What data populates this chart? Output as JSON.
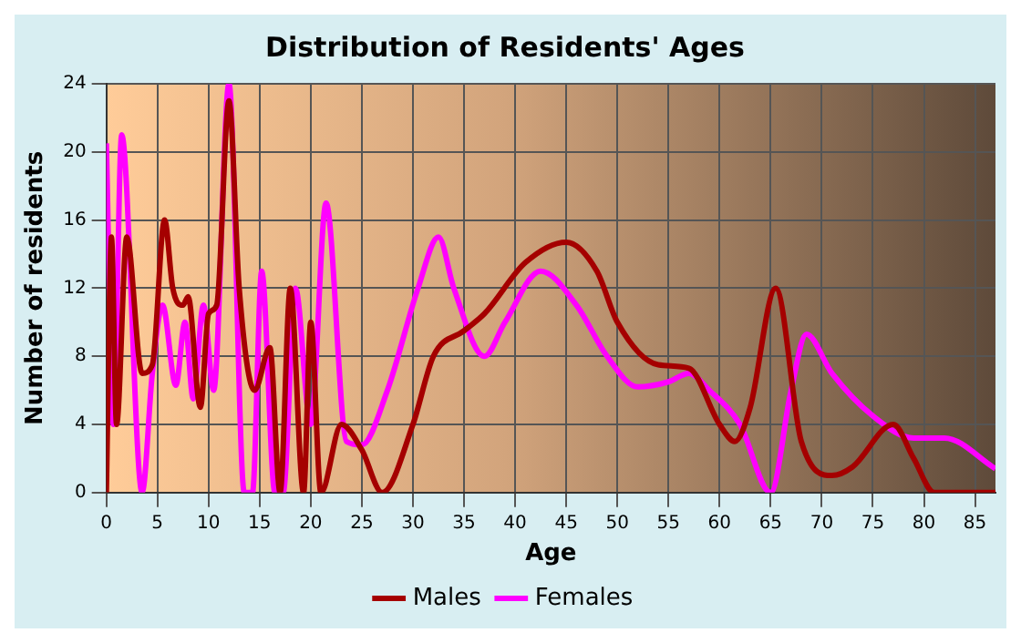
{
  "chart_data": {
    "type": "line",
    "title": "Distribution of Residents' Ages",
    "xlabel": "Age",
    "ylabel": "Number of residents",
    "xlim": [
      0,
      87
    ],
    "xticks": [
      0,
      5,
      10,
      15,
      20,
      25,
      30,
      35,
      40,
      45,
      50,
      55,
      60,
      65,
      70,
      75,
      80,
      85
    ],
    "ylim": [
      0,
      24
    ],
    "yticks": [
      0,
      4,
      8,
      12,
      16,
      20,
      24
    ],
    "grid": true,
    "legend": "bottom",
    "marker": "none",
    "line_style": "solid",
    "series": [
      {
        "name": "Males",
        "color": "#a50000",
        "x": [
          0,
          0.5,
          1,
          2,
          3.5,
          4.5,
          5.7,
          6.5,
          7.5,
          8,
          9.2,
          10,
          10.8,
          12,
          13,
          14.5,
          16,
          17,
          18,
          19.3,
          20,
          21,
          23,
          25,
          27,
          30,
          32,
          35,
          37,
          41,
          45,
          48,
          50,
          54,
          57,
          60,
          61.5,
          63,
          65.5,
          68,
          71,
          73,
          77,
          79,
          81,
          87
        ],
        "values": [
          0,
          15,
          4,
          15,
          7,
          7.5,
          16,
          12,
          11,
          11.5,
          5,
          10.5,
          11,
          23,
          12,
          6,
          8.5,
          0,
          12,
          0,
          10,
          0,
          4,
          2.5,
          0,
          4,
          8,
          9.5,
          10.5,
          13.5,
          14.7,
          13,
          10,
          7.5,
          7.3,
          4,
          3,
          5,
          12,
          3,
          1,
          1.5,
          4,
          2,
          0,
          0
        ]
      },
      {
        "name": "Females",
        "color": "#ff00ff",
        "x": [
          0,
          0.7,
          1.5,
          3.5,
          4.5,
          5.5,
          6.8,
          7.7,
          8.5,
          9.5,
          10.5,
          12,
          13.5,
          14.3,
          15.2,
          16.5,
          17.3,
          18.5,
          20,
          21.5,
          23.5,
          25,
          27.5,
          30.5,
          32.5,
          34,
          37,
          39,
          42.5,
          46,
          49,
          52,
          55,
          57,
          59,
          62,
          65,
          67,
          68.5,
          71,
          75,
          79,
          82,
          87
        ],
        "values": [
          20.5,
          4,
          21,
          0,
          7,
          11,
          6.3,
          10,
          5.5,
          11,
          6,
          24,
          0,
          0,
          13,
          0,
          0,
          12,
          4,
          17,
          3,
          2.8,
          6,
          12,
          15,
          12,
          8,
          10,
          13,
          11,
          8,
          6.2,
          6.5,
          7,
          6,
          4,
          0,
          6,
          9.3,
          7,
          4.5,
          3.2,
          3.2,
          1.4
        ]
      }
    ]
  }
}
